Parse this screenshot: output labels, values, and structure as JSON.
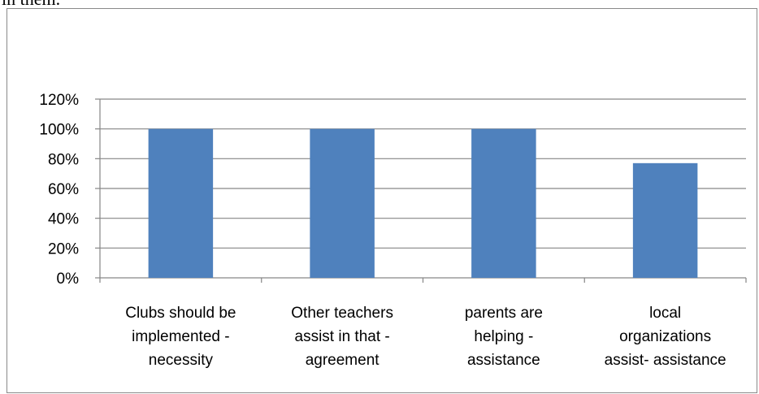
{
  "page": {
    "top_text": "in them."
  },
  "chart_data": {
    "type": "bar",
    "categories": [
      [
        "Clubs should be",
        "implemented -",
        "necessity"
      ],
      [
        "Other teachers",
        "assist in that -",
        "agreement"
      ],
      [
        "parents are",
        "helping -",
        "assistance"
      ],
      [
        "local",
        "organizations",
        "assist- assistance"
      ]
    ],
    "values": [
      1.0,
      1.0,
      1.0,
      0.77
    ],
    "yticks": [
      "0%",
      "20%",
      "40%",
      "60%",
      "80%",
      "100%",
      "120%"
    ],
    "ylim": [
      0,
      1.2
    ],
    "grid": true,
    "bar_color": "#4f81bd",
    "grid_color": "#868686"
  }
}
